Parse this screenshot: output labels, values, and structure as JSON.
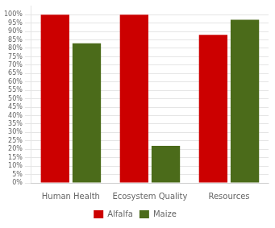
{
  "chart_data": {
    "type": "bar",
    "categories": [
      "Human Health",
      "Ecosystem Quality",
      "Resources"
    ],
    "series": [
      {
        "name": "Alfalfa",
        "color": "#CC0000",
        "values": [
          100,
          100,
          88
        ]
      },
      {
        "name": "Maize",
        "color": "#4B6B1A",
        "values": [
          83,
          22,
          97
        ]
      }
    ],
    "ylim": [
      0,
      105
    ],
    "yticks": [
      {
        "value": 0,
        "label": "0%"
      },
      {
        "value": 5,
        "label": "5%"
      },
      {
        "value": 10,
        "label": "10%"
      },
      {
        "value": 15,
        "label": "15%"
      },
      {
        "value": 20,
        "label": "20%"
      },
      {
        "value": 25,
        "label": "25%"
      },
      {
        "value": 30,
        "label": "30%"
      },
      {
        "value": 35,
        "label": "35%"
      },
      {
        "value": 40,
        "label": "40%"
      },
      {
        "value": 45,
        "label": "45%"
      },
      {
        "value": 50,
        "label": "50%"
      },
      {
        "value": 55,
        "label": "55%"
      },
      {
        "value": 60,
        "label": "60%"
      },
      {
        "value": 65,
        "label": "65%"
      },
      {
        "value": 70,
        "label": "70%"
      },
      {
        "value": 75,
        "label": "75%"
      },
      {
        "value": 80,
        "label": "80%"
      },
      {
        "value": 85,
        "label": "85%"
      },
      {
        "value": 90,
        "label": "90%"
      },
      {
        "value": 95,
        "label": "95%"
      },
      {
        "value": 100,
        "label": "100%"
      }
    ],
    "grid": true,
    "legend": "bottom"
  }
}
